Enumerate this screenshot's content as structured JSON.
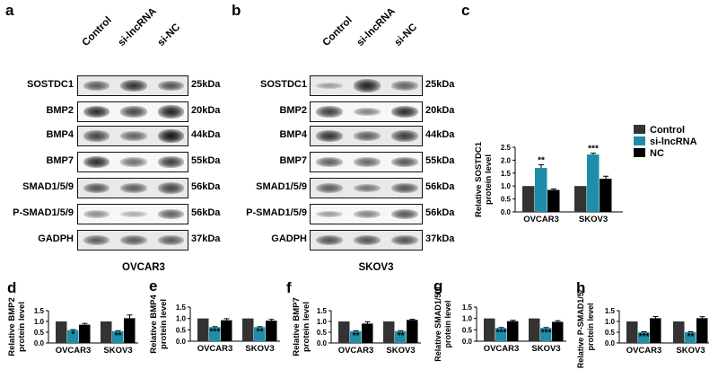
{
  "panels": {
    "a": "a",
    "b": "b",
    "c": "c",
    "d": "d",
    "e": "e",
    "f": "f",
    "g": "g",
    "h": "h"
  },
  "blots": {
    "lanes": [
      "Control",
      "si-lncRNA",
      "si-NC"
    ],
    "proteins": [
      "SOSTDC1",
      "BMP2",
      "BMP4",
      "BMP7",
      "SMAD1/5/9",
      "P-SMAD1/5/9",
      "GADPH"
    ],
    "sizes": [
      "25kDa",
      "20kDa",
      "44kDa",
      "55kDa",
      "56kDa",
      "56kDa",
      "37kDa"
    ],
    "cells": [
      "OVCAR3",
      "SKOV3"
    ],
    "intensity_a": [
      [
        0.55,
        0.8,
        0.6
      ],
      [
        0.85,
        0.7,
        0.9
      ],
      [
        0.7,
        0.5,
        1.0
      ],
      [
        0.85,
        0.45,
        0.75
      ],
      [
        0.6,
        0.55,
        0.7
      ],
      [
        0.3,
        0.1,
        0.55
      ],
      [
        0.55,
        0.55,
        0.55
      ]
    ],
    "intensity_b": [
      [
        0.15,
        0.9,
        0.5
      ],
      [
        0.75,
        0.35,
        0.85
      ],
      [
        0.8,
        0.55,
        0.75
      ],
      [
        0.55,
        0.5,
        0.6
      ],
      [
        0.55,
        0.4,
        0.6
      ],
      [
        0.2,
        0.35,
        0.6
      ],
      [
        0.6,
        0.6,
        0.6
      ]
    ]
  },
  "legend": {
    "entries": [
      {
        "label": "Control",
        "color": "#333333"
      },
      {
        "label": "si-lncRNA",
        "color": "#1e8ea8"
      },
      {
        "label": "NC",
        "color": "#000000"
      }
    ]
  },
  "chart_data": [
    {
      "id": "c",
      "type": "bar",
      "ylabel_lines": [
        "Relative  SOSTDC1",
        "protein level"
      ],
      "categories": [
        "OVCAR3",
        "SKOV3"
      ],
      "ylim": [
        0,
        2.5
      ],
      "yticks": [
        "0.0",
        "0.5",
        "1.0",
        "1.5",
        "2.0",
        "2.5"
      ],
      "series": [
        {
          "name": "Control",
          "values": [
            1.0,
            1.0
          ],
          "errors": [
            0,
            0
          ],
          "color": "#333333"
        },
        {
          "name": "si-lncRNA",
          "values": [
            1.7,
            2.22
          ],
          "errors": [
            0.12,
            0.05
          ],
          "color": "#1e8ea8"
        },
        {
          "name": "NC",
          "values": [
            0.85,
            1.28
          ],
          "errors": [
            0.04,
            0.1
          ],
          "color": "#000000"
        }
      ],
      "annotations": [
        [
          "",
          "**",
          ""
        ],
        [
          "",
          "***",
          ""
        ]
      ]
    },
    {
      "id": "d",
      "type": "bar",
      "ylabel_lines": [
        "Relative  BMP2",
        "protein level"
      ],
      "categories": [
        "OVCAR3",
        "SKOV3"
      ],
      "ylim": [
        0,
        1.5
      ],
      "yticks": [
        "0.0",
        "0.5",
        "1.0",
        "1.5"
      ],
      "series": [
        {
          "name": "Control",
          "values": [
            1.0,
            1.0
          ],
          "errors": [
            0,
            0
          ],
          "color": "#333333"
        },
        {
          "name": "si-lncRNA",
          "values": [
            0.6,
            0.55
          ],
          "errors": [
            0.02,
            0.02
          ],
          "color": "#1e8ea8"
        },
        {
          "name": "NC",
          "values": [
            0.85,
            1.15
          ],
          "errors": [
            0.06,
            0.15
          ],
          "color": "#000000"
        }
      ],
      "annotations": [
        [
          "",
          "*",
          ""
        ],
        [
          "",
          "**",
          ""
        ]
      ]
    },
    {
      "id": "e",
      "type": "bar",
      "ylabel_lines": [
        "Relative BMP4",
        "protein level"
      ],
      "categories": [
        "OVCAR3",
        "SKOV3"
      ],
      "ylim": [
        0,
        1.5
      ],
      "yticks": [
        "0.0",
        "0.5",
        "1.0",
        "1.5"
      ],
      "series": [
        {
          "name": "Control",
          "values": [
            1.0,
            1.0
          ],
          "errors": [
            0,
            0
          ],
          "color": "#333333"
        },
        {
          "name": "si-lncRNA",
          "values": [
            0.62,
            0.62
          ],
          "errors": [
            0.02,
            0.02
          ],
          "color": "#1e8ea8"
        },
        {
          "name": "NC",
          "values": [
            0.92,
            0.9
          ],
          "errors": [
            0.07,
            0.06
          ],
          "color": "#000000"
        }
      ],
      "annotations": [
        [
          "",
          "***",
          ""
        ],
        [
          "",
          "**",
          ""
        ]
      ]
    },
    {
      "id": "f",
      "type": "bar",
      "ylabel_lines": [
        "Relative BMP7",
        "protein level"
      ],
      "categories": [
        "OVCAR3",
        "SKOV3"
      ],
      "ylim": [
        0,
        1.5
      ],
      "yticks": [
        "0.0",
        "0.5",
        "1.0",
        "1.5"
      ],
      "series": [
        {
          "name": "Control",
          "values": [
            1.0,
            1.0
          ],
          "errors": [
            0,
            0
          ],
          "color": "#333333"
        },
        {
          "name": "si-lncRNA",
          "values": [
            0.55,
            0.55
          ],
          "errors": [
            0.02,
            0.02
          ],
          "color": "#1e8ea8"
        },
        {
          "name": "NC",
          "values": [
            0.9,
            1.07
          ],
          "errors": [
            0.08,
            0.03
          ],
          "color": "#000000"
        }
      ],
      "annotations": [
        [
          "",
          "**",
          ""
        ],
        [
          "",
          "**",
          ""
        ]
      ]
    },
    {
      "id": "g",
      "type": "bar",
      "ylabel_lines": [
        "Relative SMAD1/5/9",
        "protein level"
      ],
      "categories": [
        "OVCAR3",
        "SKOV3"
      ],
      "ylim": [
        0,
        1.5
      ],
      "yticks": [
        "0.0",
        "0.5",
        "1.0",
        "1.5"
      ],
      "series": [
        {
          "name": "Control",
          "values": [
            1.0,
            1.0
          ],
          "errors": [
            0,
            0
          ],
          "color": "#333333"
        },
        {
          "name": "si-lncRNA",
          "values": [
            0.58,
            0.58
          ],
          "errors": [
            0.02,
            0.02
          ],
          "color": "#1e8ea8"
        },
        {
          "name": "NC",
          "values": [
            0.88,
            0.85
          ],
          "errors": [
            0.04,
            0.05
          ],
          "color": "#000000"
        }
      ],
      "annotations": [
        [
          "",
          "***",
          ""
        ],
        [
          "",
          "***",
          ""
        ]
      ]
    },
    {
      "id": "h",
      "type": "bar",
      "ylabel_lines": [
        "Relative P-SMAD1/5/9",
        "protein level"
      ],
      "categories": [
        "OVCAR3",
        "SKOV3"
      ],
      "ylim": [
        0,
        1.5
      ],
      "yticks": [
        "0.0",
        "0.5",
        "1.0",
        "1.5"
      ],
      "series": [
        {
          "name": "Control",
          "values": [
            1.0,
            1.0
          ],
          "errors": [
            0,
            0
          ],
          "color": "#333333"
        },
        {
          "name": "si-lncRNA",
          "values": [
            0.5,
            0.5
          ],
          "errors": [
            0.02,
            0.02
          ],
          "color": "#1e8ea8"
        },
        {
          "name": "NC",
          "values": [
            1.15,
            1.15
          ],
          "errors": [
            0.08,
            0.07
          ],
          "color": "#000000"
        }
      ],
      "annotations": [
        [
          "",
          "***",
          ""
        ],
        [
          "",
          "**",
          ""
        ]
      ]
    }
  ]
}
